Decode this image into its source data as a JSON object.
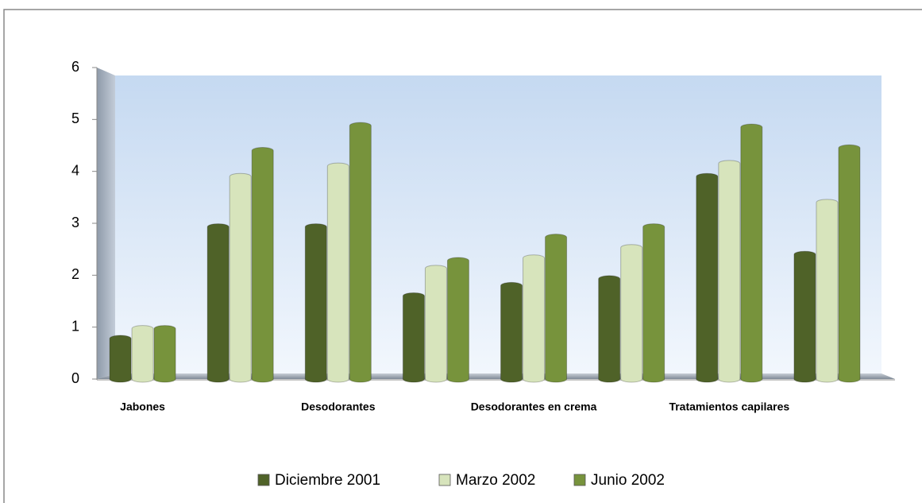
{
  "chart_data": {
    "type": "bar",
    "categories": [
      "Jabones",
      null,
      "Desodorantes",
      null,
      "Desodorantes en crema",
      null,
      "Tratamientos capilares",
      null
    ],
    "series": [
      {
        "name": "Diciembre 2001",
        "color": "#4f6228",
        "values": [
          0.78,
          2.93,
          2.93,
          1.6,
          1.8,
          1.93,
          3.9,
          2.4
        ]
      },
      {
        "name": "Marzo 2002",
        "color": "#d7e4bc",
        "values": [
          0.97,
          3.9,
          4.1,
          2.13,
          2.33,
          2.53,
          4.15,
          3.4
        ]
      },
      {
        "name": "Junio 2002",
        "color": "#77933c",
        "values": [
          0.97,
          4.4,
          4.88,
          2.28,
          2.73,
          2.93,
          4.85,
          4.45
        ]
      }
    ],
    "ylim": [
      0,
      6
    ],
    "yticks": [
      0,
      1,
      2,
      3,
      4,
      5,
      6
    ],
    "grid": false,
    "legend": "bottom"
  }
}
